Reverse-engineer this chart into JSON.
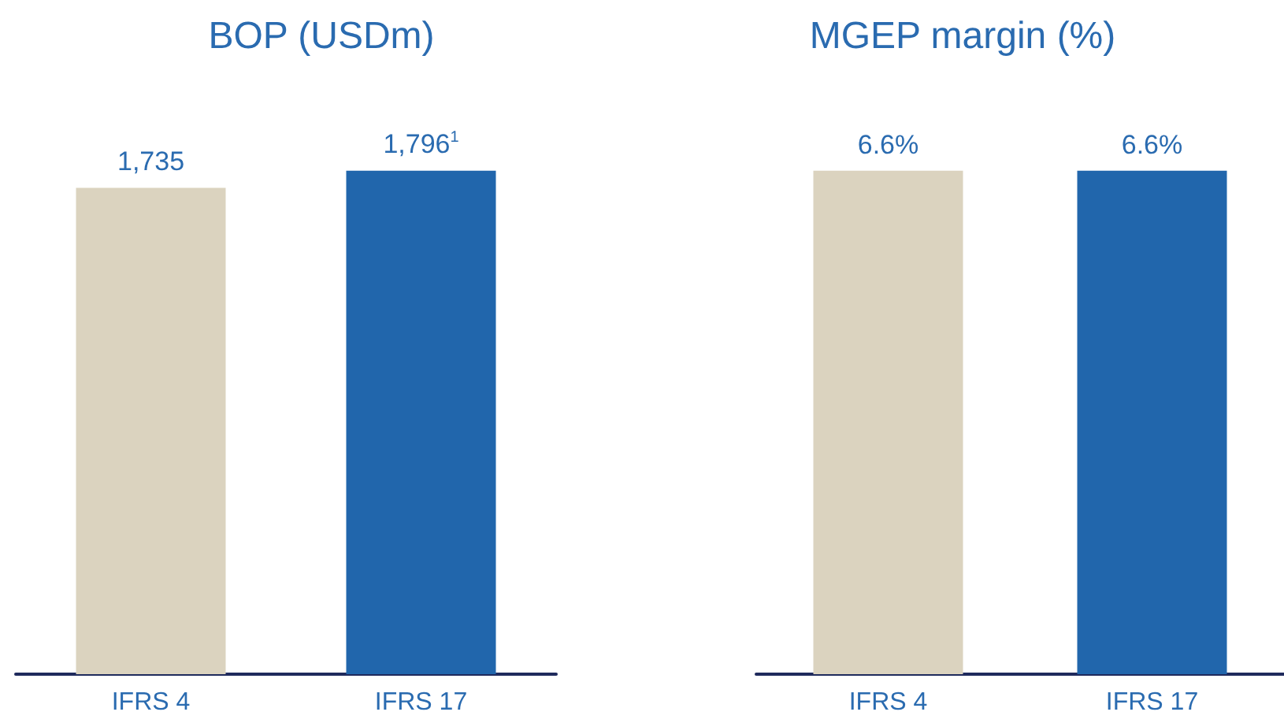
{
  "chart_data": [
    {
      "type": "bar",
      "title": "BOP (USDm)",
      "categories": [
        "IFRS 4",
        "IFRS 17"
      ],
      "values": [
        1735,
        1796
      ],
      "colors": [
        "#dbd3bf",
        "#2166ac"
      ],
      "value_labels": [
        "1,735",
        "1,796$^{1}$"
      ]
    },
    {
      "type": "bar",
      "title": "MGEP margin (%)",
      "categories": [
        "IFRS 4",
        "IFRS 17"
      ],
      "values": [
        6.6,
        6.6
      ],
      "colors": [
        "#dbd3bf",
        "#2166ac"
      ],
      "value_labels": [
        "6.6%",
        "6.6%"
      ]
    }
  ]
}
